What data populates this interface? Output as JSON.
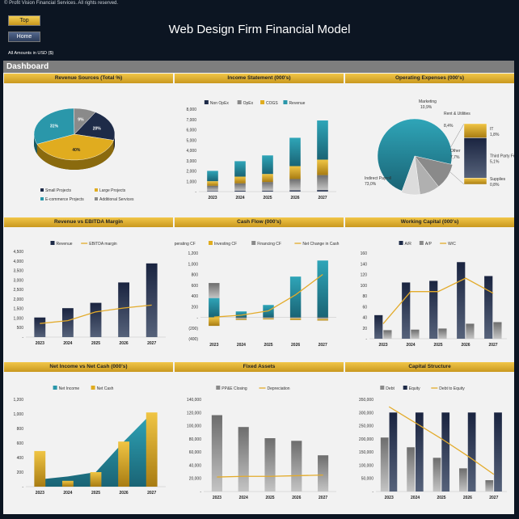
{
  "header": {
    "copyright": "© Profit Vision Financial Services. All rights reserved.",
    "top_button": "Top",
    "home_button": "Home",
    "title": "Web Design Firm Financial Model",
    "amounts_note": "All Amounts in  USD ($)",
    "dashboard_label": "Dashboard"
  },
  "colors": {
    "navy": "#1e2b48",
    "gold": "#e0ac1f",
    "teal": "#2a97aa",
    "grey": "#8a8a8a",
    "lightgrey": "#bdbdbd",
    "line": "#e3ab2b"
  },
  "chart_data": [
    {
      "id": "revenue_sources",
      "type": "pie",
      "title": "Revenue Sources (Total %)",
      "labels": [
        "Small Projects",
        "Large Projects",
        "E-commerce Projects",
        "Additional Services"
      ],
      "values": [
        20,
        40,
        31,
        9
      ],
      "value_labels": [
        "20%",
        "40%",
        "31%",
        "9%"
      ]
    },
    {
      "id": "income_statement",
      "type": "bar",
      "title": "Income Statement (000's)",
      "categories": [
        "2023",
        "2024",
        "2025",
        "2026",
        "2027"
      ],
      "ylim": [
        0,
        8000
      ],
      "yticks": [
        "8,000",
        "7,000",
        "6,000",
        "5,000",
        "4,000",
        "3,000",
        "2,000",
        "1,000",
        "-"
      ],
      "series": [
        {
          "name": "Non OpEx",
          "values": [
            60,
            80,
            90,
            120,
            150
          ]
        },
        {
          "name": "OpEx",
          "values": [
            500,
            720,
            840,
            1100,
            1450
          ]
        },
        {
          "name": "COGS",
          "values": [
            450,
            650,
            780,
            1250,
            1500
          ]
        },
        {
          "name": "Revenue",
          "values": [
            1000,
            1500,
            1800,
            2750,
            3800
          ]
        }
      ]
    },
    {
      "id": "operating_expenses",
      "type": "pie",
      "title": "Operating Expenses (000's)",
      "labels": [
        "Indirect Payroll",
        "Marketing",
        "Rent & Utilities",
        "Other",
        "IT",
        "Third Party Fees",
        "Supplies"
      ],
      "values": [
        73.0,
        10.9,
        8.4,
        7.7,
        1.8,
        5.1,
        0.8
      ],
      "value_labels": [
        "73,0%",
        "10,9%",
        "8,4%",
        "7,7%",
        "1,8%",
        "5,1%",
        "0,8%"
      ]
    },
    {
      "id": "revenue_vs_ebitda",
      "type": "bar",
      "title": "Revenue vs EBITDA Margin",
      "categories": [
        "2023",
        "2024",
        "2025",
        "2026",
        "2027"
      ],
      "ylim": [
        0,
        4500
      ],
      "yticks": [
        "4,500",
        "4,000",
        "3,500",
        "3,000",
        "2,500",
        "2,000",
        "1,500",
        "1,000",
        "500",
        "-"
      ],
      "series": [
        {
          "name": "Revenue",
          "values": [
            1030,
            1520,
            1800,
            2870,
            3870
          ]
        },
        {
          "name": "EBITDA margin",
          "values": [
            14,
            17,
            26,
            30,
            33
          ]
        }
      ]
    },
    {
      "id": "cash_flow",
      "type": "bar",
      "title": "Cash Flow (000's)",
      "categories": [
        "2023",
        "2024",
        "2025",
        "2026",
        "2027"
      ],
      "ylim": [
        -400,
        1200
      ],
      "yticks": [
        "1,200",
        "1,000",
        "800",
        "600",
        "400",
        "200",
        "-",
        "(200)",
        "(400)"
      ],
      "series": [
        {
          "name": "Operating CF",
          "values": [
            360,
            110,
            230,
            760,
            1060
          ]
        },
        {
          "name": "Investing CF",
          "values": [
            -160,
            -20,
            -20,
            -30,
            -30
          ]
        },
        {
          "name": "Financing CF",
          "values": [
            280,
            -30,
            -20,
            -20,
            -30
          ]
        },
        {
          "name": "Net Change in Cash",
          "values": [
            5,
            40,
            120,
            420,
            800
          ]
        }
      ]
    },
    {
      "id": "working_capital",
      "type": "bar",
      "title": "Working Capital (000's)",
      "categories": [
        "2023",
        "2024",
        "2025",
        "2026",
        "2027"
      ],
      "ylim": [
        0,
        160
      ],
      "yticks": [
        "160",
        "140",
        "120",
        "100",
        "80",
        "60",
        "40",
        "20",
        "-"
      ],
      "series": [
        {
          "name": "A/R",
          "values": [
            44,
            105,
            108,
            143,
            117
          ]
        },
        {
          "name": "A/P",
          "values": [
            16,
            17,
            19,
            28,
            31
          ]
        },
        {
          "name": "W/C",
          "values": [
            28,
            88,
            88,
            113,
            85
          ]
        }
      ]
    },
    {
      "id": "net_income_vs_cash",
      "type": "area",
      "title": "Net Income vs Net Cash (000's)",
      "categories": [
        "2023",
        "2024",
        "2025",
        "2026",
        "2027"
      ],
      "ylim": [
        0,
        1200
      ],
      "yticks": [
        "1,200",
        "1,000",
        "800",
        "600",
        "400",
        "200",
        "-"
      ],
      "series": [
        {
          "name": "Net Income",
          "values": [
            100,
            140,
            200,
            620,
            1010
          ]
        },
        {
          "name": "Net Cash",
          "values": [
            490,
            80,
            200,
            620,
            1020
          ]
        }
      ]
    },
    {
      "id": "fixed_assets",
      "type": "bar",
      "title": "Fixed Assets",
      "categories": [
        "2023",
        "2024",
        "2025",
        "2026",
        "2027"
      ],
      "ylim": [
        0,
        140000
      ],
      "yticks": [
        "140,000",
        "120,000",
        "100,000",
        "80,000",
        "60,000",
        "40,000",
        "20,000",
        "-"
      ],
      "series": [
        {
          "name": "PP&E Closing",
          "values": [
            116000,
            98000,
            81000,
            77000,
            55000
          ]
        },
        {
          "name": "Depreciation",
          "values": [
            22000,
            23000,
            23000,
            24000,
            25000
          ]
        }
      ]
    },
    {
      "id": "capital_structure",
      "type": "bar",
      "title": "Capital Structure",
      "categories": [
        "2023",
        "2024",
        "2025",
        "2026",
        "2027"
      ],
      "ylim": [
        0,
        350000
      ],
      "yticks": [
        "350,000",
        "300,000",
        "250,000",
        "200,000",
        "150,000",
        "100,000",
        "50,000",
        "-"
      ],
      "series": [
        {
          "name": "Debt",
          "values": [
            205000,
            168000,
            128000,
            88000,
            43000
          ]
        },
        {
          "name": "Equity",
          "values": [
            300000,
            300000,
            300000,
            300000,
            300000
          ]
        },
        {
          "name": "Debt to Equity",
          "values": [
            0.69,
            0.56,
            0.43,
            0.29,
            0.14
          ]
        }
      ]
    }
  ]
}
